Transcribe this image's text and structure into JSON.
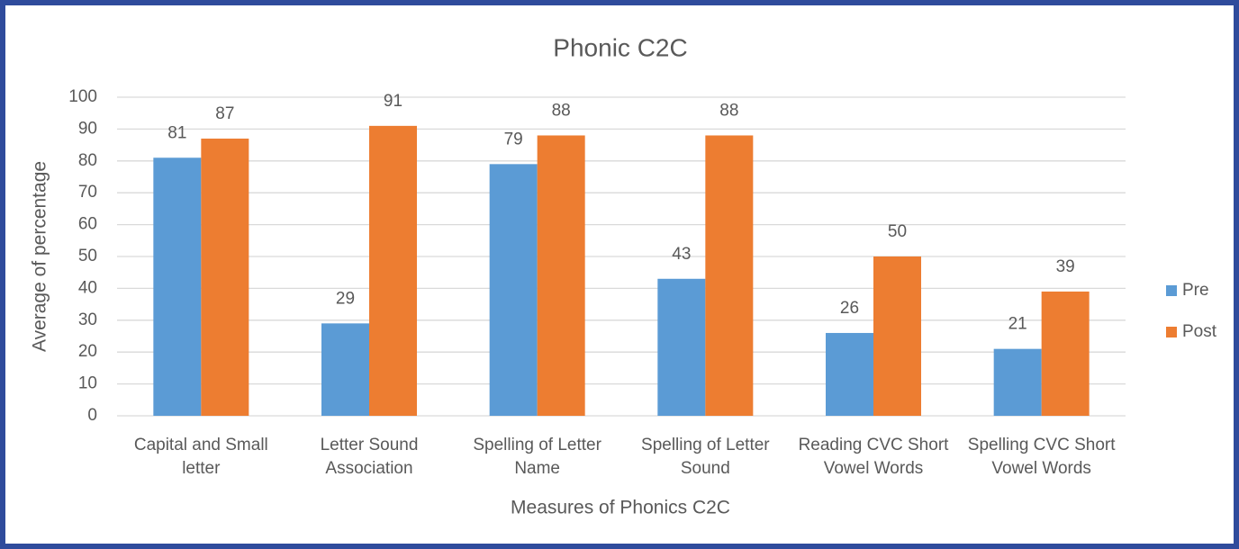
{
  "chart_data": {
    "type": "bar",
    "title": "Phonic C2C",
    "x_label": "Measures of Phonics C2C",
    "y_label": "Average of percentage",
    "categories": [
      "Capital and Small letter",
      "Letter Sound Association",
      "Spelling of Letter Name",
      "Spelling of Letter Sound",
      "Reading CVC Short Vowel Words",
      "Spelling CVC Short Vowel Words"
    ],
    "series": [
      {
        "name": "Pre",
        "color": "#5b9bd5",
        "values": [
          81,
          29,
          79,
          43,
          26,
          21
        ]
      },
      {
        "name": "Post",
        "color": "#ed7d31",
        "values": [
          87,
          91,
          88,
          88,
          50,
          39
        ]
      }
    ],
    "ylim": [
      0,
      100
    ],
    "yticks": [
      0,
      10,
      20,
      30,
      40,
      50,
      60,
      70,
      80,
      90,
      100
    ],
    "grid": true,
    "legend": "right"
  }
}
